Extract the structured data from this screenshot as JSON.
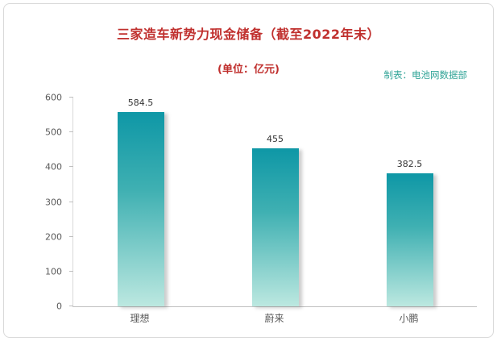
{
  "chart_data": {
    "type": "bar",
    "title": "三家造车新势力现金储备（截至2022年末）",
    "subtitle": "(单位：亿元)",
    "credit": "制表：电池网数据部",
    "categories": [
      "理想",
      "蔚来",
      "小鹏"
    ],
    "values": [
      584.5,
      455,
      382.5
    ],
    "value_labels": [
      "584.5",
      "455",
      "382.5"
    ],
    "xlabel": "",
    "ylabel": "",
    "ylim": [
      0,
      600
    ],
    "yticks": [
      0,
      100,
      200,
      300,
      400,
      500,
      600
    ],
    "grid": false,
    "legend": "none",
    "colors": {
      "title": "#c0302e",
      "credit": "#2fa396",
      "bar_gradient_top": "#0e97a6",
      "bar_gradient_bottom": "#bce8e0",
      "axis_text": "#595959"
    }
  }
}
